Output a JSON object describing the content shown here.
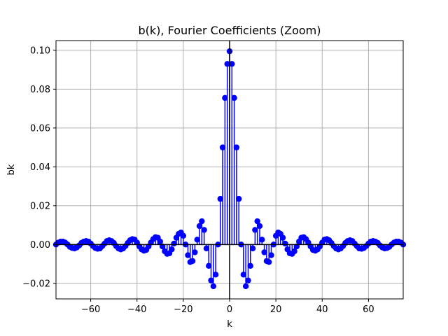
{
  "chart_data": {
    "type": "stem",
    "title": "b(k), Fourier Coefficients (Zoom)",
    "xlabel": "k",
    "ylabel": "bk",
    "xlim": [
      -75,
      75
    ],
    "ylim": [
      -0.028,
      0.105
    ],
    "grid": true,
    "series_color": "#0000ff",
    "zero_line_color": "#000000",
    "x_ticks": [
      -60,
      -40,
      -20,
      0,
      20,
      40,
      60
    ],
    "x_tick_labels": [
      "−60",
      "−40",
      "−20",
      "0",
      "20",
      "40",
      "60"
    ],
    "y_ticks": [
      -0.02,
      0.0,
      0.02,
      0.04,
      0.06,
      0.08,
      0.1
    ],
    "y_tick_labels": [
      "−0.02",
      "0.00",
      "0.02",
      "0.04",
      "0.06",
      "0.08",
      "0.10"
    ],
    "k": [
      -75,
      -74,
      -73,
      -72,
      -71,
      -70,
      -69,
      -68,
      -67,
      -66,
      -65,
      -64,
      -63,
      -62,
      -61,
      -60,
      -59,
      -58,
      -57,
      -56,
      -55,
      -54,
      -53,
      -52,
      -51,
      -50,
      -49,
      -48,
      -47,
      -46,
      -45,
      -44,
      -43,
      -42,
      -41,
      -40,
      -39,
      -38,
      -37,
      -36,
      -35,
      -34,
      -33,
      -32,
      -31,
      -30,
      -29,
      -28,
      -27,
      -26,
      -25,
      -24,
      -23,
      -22,
      -21,
      -20,
      -19,
      -18,
      -17,
      -16,
      -15,
      -14,
      -13,
      -12,
      -11,
      -10,
      -9,
      -8,
      -7,
      -6,
      -5,
      -4,
      -3,
      -2,
      -1,
      0,
      1,
      2,
      3,
      4,
      5,
      6,
      7,
      8,
      9,
      10,
      11,
      12,
      13,
      14,
      15,
      16,
      17,
      18,
      19,
      20,
      21,
      22,
      23,
      24,
      25,
      26,
      27,
      28,
      29,
      30,
      31,
      32,
      33,
      34,
      35,
      36,
      37,
      38,
      39,
      40,
      41,
      42,
      43,
      44,
      45,
      46,
      47,
      48,
      49,
      50,
      51,
      52,
      53,
      54,
      55,
      56,
      57,
      58,
      59,
      60,
      61,
      62,
      63,
      64,
      65,
      66,
      67,
      68,
      69,
      70,
      71,
      72,
      73,
      74,
      75
    ],
    "bk": [
      0.0,
      0.001,
      0.0015,
      0.0015,
      0.001,
      0.0,
      -0.0012,
      -0.0018,
      -0.002,
      -0.0015,
      -0.0005,
      0.0008,
      0.0015,
      0.0018,
      0.0015,
      0.0005,
      -0.0008,
      -0.0018,
      -0.0022,
      -0.002,
      -0.0008,
      0.0005,
      0.0018,
      0.0022,
      0.0018,
      0.0008,
      -0.0008,
      -0.002,
      -0.0025,
      -0.002,
      -0.0008,
      0.0008,
      0.0022,
      0.0028,
      0.0025,
      0.001,
      -0.001,
      -0.0025,
      -0.0032,
      -0.0028,
      -0.001,
      0.001,
      0.0028,
      0.0038,
      0.0035,
      0.0015,
      -0.001,
      -0.0035,
      -0.0048,
      -0.0045,
      -0.0025,
      0.0005,
      0.0035,
      0.0055,
      0.0062,
      0.0045,
      0.0,
      -0.0055,
      -0.009,
      -0.0085,
      -0.004,
      0.0025,
      0.0095,
      0.012,
      0.0075,
      -0.002,
      -0.011,
      -0.0185,
      -0.0215,
      -0.0155,
      0.0,
      0.0235,
      0.05,
      0.0755,
      0.093,
      0.0995,
      0.093,
      0.0755,
      0.05,
      0.0235,
      0.0,
      -0.0155,
      -0.0215,
      -0.0185,
      -0.011,
      -0.002,
      0.0075,
      0.012,
      0.0095,
      0.0025,
      -0.004,
      -0.0085,
      -0.009,
      -0.0055,
      0.0,
      0.0045,
      0.0062,
      0.0055,
      0.0035,
      0.0005,
      -0.0025,
      -0.0045,
      -0.0048,
      -0.0035,
      -0.001,
      0.0015,
      0.0035,
      0.0038,
      0.0028,
      0.001,
      -0.001,
      -0.0028,
      -0.0032,
      -0.0025,
      -0.001,
      0.001,
      0.0025,
      0.0028,
      0.0022,
      0.0008,
      -0.0008,
      -0.002,
      -0.0025,
      -0.002,
      -0.0008,
      0.0008,
      0.0018,
      0.0022,
      0.0018,
      0.0005,
      -0.0008,
      -0.002,
      -0.0022,
      -0.0018,
      -0.0008,
      0.0005,
      0.0015,
      0.0018,
      0.0015,
      0.0008,
      -0.0005,
      -0.0015,
      -0.002,
      -0.0018,
      -0.0012,
      0.0,
      0.001,
      0.0015,
      0.0015,
      0.001,
      0.0
    ]
  }
}
